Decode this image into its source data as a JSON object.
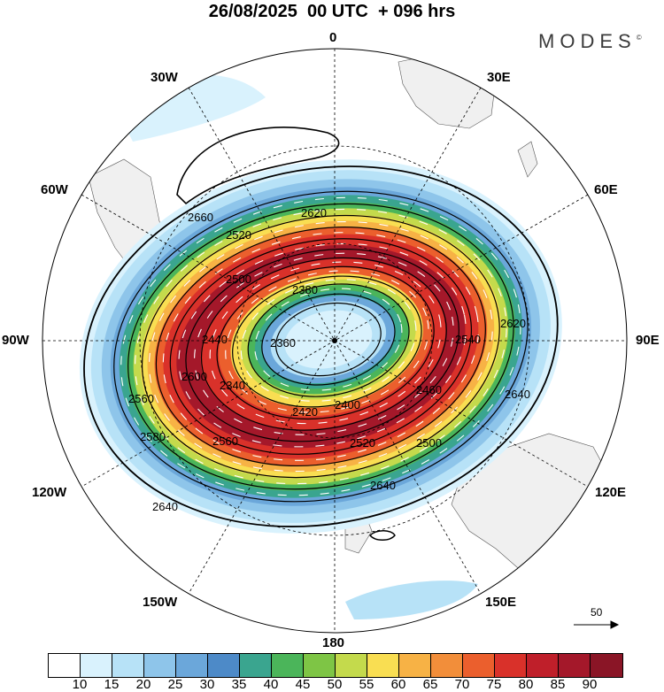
{
  "header": {
    "title": "26/08/2025  00 UTC  + 096 hrs",
    "brand": "MODES",
    "brand_mark": "©"
  },
  "map": {
    "projection": "south-polar-stereographic",
    "longitude_labels": {
      "top": "0",
      "top_right": "30E",
      "right_upper": "60E",
      "right": "90E",
      "right_lower": "120E",
      "bottom_right": "150E",
      "bottom": "180",
      "bottom_left": "150W",
      "left_lower": "120W",
      "left": "90W",
      "left_upper": "60W",
      "top_left": "30W"
    },
    "contour_labels": [
      "2660",
      "2620",
      "2520",
      "2500",
      "2480",
      "2460",
      "2440",
      "2420",
      "2400",
      "2380",
      "2360",
      "2340",
      "2540",
      "2560",
      "2580",
      "2600",
      "2620",
      "2640",
      "2640",
      "2640",
      "2560",
      "2580",
      "2620",
      "2500",
      "2520",
      "2540",
      "2460"
    ],
    "reference_vector": "50"
  },
  "colorbar": {
    "labels": [
      "10",
      "15",
      "20",
      "25",
      "30",
      "35",
      "40",
      "45",
      "50",
      "55",
      "60",
      "65",
      "70",
      "75",
      "80",
      "85",
      "90"
    ],
    "colors": [
      "#ffffff",
      "#d9f2fd",
      "#b7e2f7",
      "#8ec5ea",
      "#6ba7da",
      "#4d8ac8",
      "#3aa58f",
      "#4bb55a",
      "#7ec545",
      "#c4da4c",
      "#f9de52",
      "#f7b245",
      "#f28e3a",
      "#eb5f2d",
      "#d9312a",
      "#bf1f2a",
      "#a4182a",
      "#8a1526"
    ]
  }
}
